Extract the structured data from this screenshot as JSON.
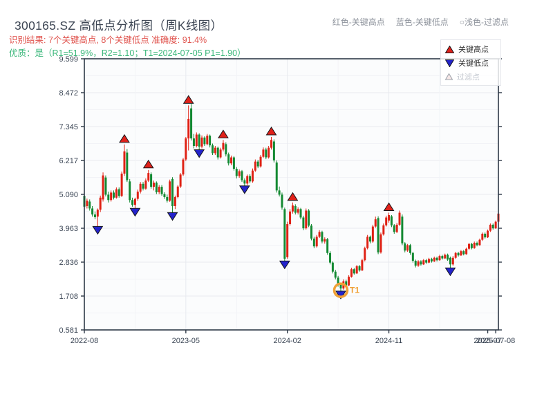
{
  "header": {
    "title": "300165.SZ 高低点分析图（周K线图）",
    "color_legend": [
      {
        "label": "红色-关键高点"
      },
      {
        "label": "蓝色-关键低点"
      },
      {
        "label": "○浅色-过滤点"
      }
    ],
    "result_line": "识别结果: 7个关键高点, 8个关键低点  准确度: 91.4%",
    "quality_line": "优质：是（R1=51.9%，R2=1.10；T1=2024-07-05 P1=1.90）"
  },
  "colors": {
    "title_text": "#3d4654",
    "result_text": "#e0534d",
    "quality_text": "#3ab77a",
    "header_legend_text": "#8e939c",
    "axis": "#2e3947",
    "tick_label": "#3a4554",
    "grid_major": "#e8eaef",
    "grid_minor": "#f2f3f7",
    "plot_bg": "#fbfcfd"
  },
  "chart_data": {
    "type": "candlestick",
    "period": "weekly",
    "ylim": [
      0.581,
      9.599
    ],
    "y_ticks": [
      "9.599",
      "8.472",
      "7.345",
      "6.217",
      "5.090",
      "3.963",
      "2.836",
      "1.708",
      "0.581"
    ],
    "x_ticks": [
      {
        "label": "2022-08",
        "week": 0
      },
      {
        "label": "2023-05",
        "week": 38
      },
      {
        "label": "2024-02",
        "week": 76
      },
      {
        "label": "2024-11",
        "week": 114
      },
      {
        "label": "2025-07",
        "week": 151
      },
      {
        "label": "2025-07-08",
        "week": 154
      }
    ],
    "v_grid_weeks_major": [
      38,
      76,
      114
    ],
    "v_grid_weeks_minor": [
      19,
      57,
      95,
      133
    ],
    "grid": true,
    "colors": {
      "up": "#df2114",
      "down": "#138932",
      "key_high": "#e0211a",
      "key_low": "#2323cc",
      "marker_outline": "#15161a",
      "filtered_fill": "#f6e7e7",
      "filtered_stroke": "#9aa0a8",
      "t1_ring": "#f0a035",
      "t1_text": "#f0a035"
    },
    "legend": [
      {
        "label": "关键高点",
        "marker": "up-triangle",
        "color": "#e0211a"
      },
      {
        "label": "关键低点",
        "marker": "down-triangle",
        "color": "#2323cc"
      },
      {
        "label": "过滤点",
        "marker": "up-triangle-outline",
        "color": "#f6e7e7"
      }
    ],
    "key_highs": [
      {
        "week": 15,
        "price": 6.75
      },
      {
        "week": 24,
        "price": 5.9
      },
      {
        "week": 39,
        "price": 8.05
      },
      {
        "week": 52,
        "price": 6.9
      },
      {
        "week": 70,
        "price": 7.0
      },
      {
        "week": 78,
        "price": 4.82
      },
      {
        "week": 114,
        "price": 4.48
      }
    ],
    "key_lows": [
      {
        "week": 5,
        "price": 4.0
      },
      {
        "week": 19,
        "price": 4.6
      },
      {
        "week": 33,
        "price": 4.46
      },
      {
        "week": 43,
        "price": 6.55
      },
      {
        "week": 60,
        "price": 5.35
      },
      {
        "week": 75,
        "price": 2.85
      },
      {
        "week": 96,
        "price": 1.85
      },
      {
        "week": 137,
        "price": 2.62
      }
    ],
    "t1_annotation": {
      "label": "T1",
      "week": 96,
      "price": 1.9
    },
    "candles": [
      [
        5.04,
        5.1,
        4.6,
        4.68
      ],
      [
        4.7,
        4.95,
        4.62,
        4.88
      ],
      [
        4.85,
        4.92,
        4.55,
        4.62
      ],
      [
        4.62,
        4.7,
        4.35,
        4.42
      ],
      [
        4.42,
        4.52,
        4.26,
        4.33
      ],
      [
        4.35,
        4.62,
        4.0,
        4.58
      ],
      [
        4.58,
        5.05,
        4.5,
        4.98
      ],
      [
        4.92,
        5.82,
        4.85,
        5.72
      ],
      [
        5.65,
        5.72,
        5.02,
        5.08
      ],
      [
        5.08,
        5.18,
        4.82,
        4.9
      ],
      [
        4.9,
        5.22,
        4.85,
        5.15
      ],
      [
        5.15,
        5.22,
        4.92,
        4.98
      ],
      [
        4.98,
        5.32,
        4.95,
        5.26
      ],
      [
        5.26,
        5.32,
        4.98,
        5.04
      ],
      [
        5.04,
        5.85,
        5.0,
        5.78
      ],
      [
        5.78,
        6.75,
        5.7,
        6.52
      ],
      [
        6.48,
        6.6,
        5.5,
        5.56
      ],
      [
        5.52,
        5.6,
        4.82,
        4.9
      ],
      [
        4.9,
        4.98,
        4.68,
        4.74
      ],
      [
        4.74,
        4.98,
        4.6,
        4.94
      ],
      [
        4.94,
        5.25,
        4.88,
        5.18
      ],
      [
        5.18,
        5.5,
        5.12,
        5.44
      ],
      [
        5.44,
        5.5,
        5.22,
        5.28
      ],
      [
        5.28,
        5.62,
        5.24,
        5.55
      ],
      [
        5.55,
        5.9,
        5.5,
        5.8
      ],
      [
        5.76,
        5.82,
        5.28,
        5.34
      ],
      [
        5.34,
        5.55,
        5.22,
        5.48
      ],
      [
        5.48,
        5.52,
        5.1,
        5.16
      ],
      [
        5.16,
        5.4,
        5.1,
        5.34
      ],
      [
        5.34,
        5.4,
        5.04,
        5.1
      ],
      [
        5.1,
        5.16,
        4.94,
        5.0
      ],
      [
        5.0,
        5.08,
        4.82,
        4.88
      ],
      [
        4.88,
        5.58,
        4.84,
        5.52
      ],
      [
        5.6,
        5.66,
        4.46,
        4.7
      ],
      [
        4.7,
        5.05,
        4.6,
        5.0
      ],
      [
        5.0,
        5.4,
        4.96,
        5.35
      ],
      [
        5.35,
        5.8,
        5.3,
        5.75
      ],
      [
        5.75,
        6.3,
        5.7,
        6.25
      ],
      [
        6.25,
        7.0,
        6.2,
        6.95
      ],
      [
        6.95,
        8.05,
        6.55,
        7.6
      ],
      [
        7.95,
        8.1,
        6.88,
        6.95
      ],
      [
        6.95,
        7.1,
        6.62,
        6.7
      ],
      [
        6.7,
        7.15,
        6.65,
        7.08
      ],
      [
        7.08,
        7.12,
        6.55,
        6.68
      ],
      [
        6.68,
        7.05,
        6.62,
        6.98
      ],
      [
        6.98,
        7.02,
        6.7,
        6.76
      ],
      [
        6.76,
        7.1,
        6.72,
        7.04
      ],
      [
        7.04,
        7.08,
        6.65,
        6.72
      ],
      [
        6.72,
        6.78,
        6.4,
        6.46
      ],
      [
        6.46,
        6.7,
        6.4,
        6.64
      ],
      [
        6.64,
        6.68,
        6.25,
        6.32
      ],
      [
        6.32,
        6.64,
        6.28,
        6.58
      ],
      [
        6.58,
        6.9,
        6.52,
        6.8
      ],
      [
        6.76,
        6.82,
        6.35,
        6.42
      ],
      [
        6.42,
        6.48,
        6.05,
        6.12
      ],
      [
        6.12,
        6.38,
        6.06,
        6.32
      ],
      [
        6.32,
        6.36,
        5.88,
        5.94
      ],
      [
        5.94,
        6.0,
        5.62,
        5.7
      ],
      [
        5.7,
        5.92,
        5.64,
        5.86
      ],
      [
        5.86,
        5.9,
        5.5,
        5.56
      ],
      [
        5.56,
        5.62,
        5.35,
        5.45
      ],
      [
        5.45,
        5.75,
        5.4,
        5.7
      ],
      [
        5.7,
        5.76,
        5.46,
        5.52
      ],
      [
        5.52,
        5.95,
        5.48,
        5.88
      ],
      [
        5.88,
        6.25,
        5.84,
        6.18
      ],
      [
        6.18,
        6.24,
        5.96,
        6.02
      ],
      [
        6.02,
        6.4,
        5.98,
        6.34
      ],
      [
        6.34,
        6.65,
        6.3,
        6.58
      ],
      [
        6.58,
        6.64,
        6.26,
        6.32
      ],
      [
        6.32,
        6.7,
        6.28,
        6.64
      ],
      [
        6.64,
        7.0,
        6.58,
        6.9
      ],
      [
        6.85,
        6.92,
        6.15,
        6.22
      ],
      [
        6.15,
        6.22,
        5.15,
        5.22
      ],
      [
        5.22,
        5.35,
        5.02,
        5.08
      ],
      [
        5.08,
        5.15,
        4.58,
        4.65
      ],
      [
        4.6,
        4.65,
        2.85,
        2.95
      ],
      [
        3.0,
        4.18,
        2.95,
        4.1
      ],
      [
        4.1,
        4.6,
        4.05,
        4.52
      ],
      [
        4.52,
        4.82,
        4.45,
        4.72
      ],
      [
        4.7,
        4.76,
        4.42,
        4.48
      ],
      [
        4.48,
        4.66,
        4.42,
        4.6
      ],
      [
        4.6,
        4.64,
        4.26,
        4.32
      ],
      [
        4.32,
        4.38,
        3.9,
        3.96
      ],
      [
        3.96,
        4.62,
        3.92,
        4.55
      ],
      [
        4.55,
        4.6,
        4.0,
        4.05
      ],
      [
        4.05,
        4.1,
        3.56,
        3.62
      ],
      [
        3.62,
        3.68,
        3.3,
        3.36
      ],
      [
        3.36,
        3.74,
        3.32,
        3.68
      ],
      [
        3.68,
        3.9,
        3.64,
        3.84
      ],
      [
        3.84,
        3.88,
        3.46,
        3.52
      ],
      [
        3.52,
        3.66,
        3.45,
        3.6
      ],
      [
        3.6,
        3.64,
        3.08,
        3.14
      ],
      [
        3.14,
        3.2,
        2.76,
        2.82
      ],
      [
        2.82,
        2.86,
        2.46,
        2.52
      ],
      [
        2.52,
        2.58,
        2.26,
        2.32
      ],
      [
        2.32,
        2.38,
        2.02,
        2.08
      ],
      [
        2.08,
        2.15,
        1.85,
        1.96
      ],
      [
        1.96,
        2.26,
        1.92,
        2.2
      ],
      [
        2.2,
        2.25,
        2.02,
        2.06
      ],
      [
        2.06,
        2.4,
        2.04,
        2.35
      ],
      [
        2.35,
        2.65,
        2.32,
        2.6
      ],
      [
        2.6,
        2.64,
        2.42,
        2.46
      ],
      [
        2.46,
        2.74,
        2.44,
        2.7
      ],
      [
        2.7,
        2.74,
        2.52,
        2.56
      ],
      [
        2.56,
        2.95,
        2.54,
        2.9
      ],
      [
        2.9,
        3.35,
        2.86,
        3.3
      ],
      [
        3.3,
        3.74,
        3.26,
        3.68
      ],
      [
        3.68,
        3.72,
        3.46,
        3.52
      ],
      [
        3.52,
        4.08,
        3.48,
        4.02
      ],
      [
        4.02,
        4.35,
        3.98,
        4.26
      ],
      [
        4.3,
        4.36,
        3.1,
        3.16
      ],
      [
        3.16,
        3.82,
        3.12,
        3.76
      ],
      [
        3.76,
        4.12,
        3.72,
        4.06
      ],
      [
        4.06,
        4.38,
        4.02,
        4.32
      ],
      [
        4.22,
        4.48,
        4.15,
        4.4
      ],
      [
        4.36,
        4.4,
        4.0,
        4.06
      ],
      [
        4.06,
        4.1,
        3.78,
        3.84
      ],
      [
        3.84,
        4.14,
        3.8,
        4.08
      ],
      [
        4.08,
        4.55,
        4.04,
        4.48
      ],
      [
        4.35,
        4.42,
        3.4,
        3.46
      ],
      [
        3.46,
        3.5,
        3.16,
        3.22
      ],
      [
        3.22,
        3.44,
        3.18,
        3.4
      ],
      [
        3.4,
        3.44,
        3.08,
        3.14
      ],
      [
        3.14,
        3.18,
        2.82,
        2.88
      ],
      [
        2.88,
        2.92,
        2.66,
        2.72
      ],
      [
        2.72,
        2.9,
        2.68,
        2.86
      ],
      [
        2.86,
        2.9,
        2.72,
        2.76
      ],
      [
        2.76,
        2.94,
        2.74,
        2.9
      ],
      [
        2.9,
        2.94,
        2.78,
        2.82
      ],
      [
        2.82,
        2.98,
        2.8,
        2.94
      ],
      [
        2.94,
        2.98,
        2.82,
        2.86
      ],
      [
        2.86,
        3.02,
        2.84,
        2.98
      ],
      [
        2.98,
        3.02,
        2.86,
        2.9
      ],
      [
        2.9,
        3.08,
        2.88,
        3.04
      ],
      [
        3.04,
        3.08,
        2.92,
        2.96
      ],
      [
        2.96,
        3.12,
        2.94,
        3.08
      ],
      [
        3.08,
        3.12,
        2.88,
        2.92
      ],
      [
        2.98,
        3.02,
        2.62,
        2.76
      ],
      [
        2.76,
        3.04,
        2.72,
        2.98
      ],
      [
        2.98,
        3.18,
        2.94,
        3.14
      ],
      [
        3.14,
        3.18,
        3.02,
        3.06
      ],
      [
        3.06,
        3.24,
        3.04,
        3.2
      ],
      [
        3.2,
        3.24,
        3.06,
        3.1
      ],
      [
        3.1,
        3.32,
        3.08,
        3.28
      ],
      [
        3.28,
        3.48,
        3.24,
        3.44
      ],
      [
        3.44,
        3.48,
        3.26,
        3.3
      ],
      [
        3.3,
        3.52,
        3.28,
        3.48
      ],
      [
        3.48,
        3.52,
        3.36,
        3.4
      ],
      [
        3.4,
        3.62,
        3.38,
        3.58
      ],
      [
        3.58,
        3.82,
        3.54,
        3.78
      ],
      [
        3.78,
        3.82,
        3.62,
        3.66
      ],
      [
        3.66,
        3.92,
        3.64,
        3.88
      ],
      [
        3.88,
        4.12,
        3.84,
        4.08
      ],
      [
        4.08,
        4.12,
        3.92,
        3.96
      ],
      [
        3.96,
        4.22,
        3.94,
        4.18
      ],
      [
        4.18,
        4.55,
        4.14,
        4.45
      ]
    ]
  }
}
